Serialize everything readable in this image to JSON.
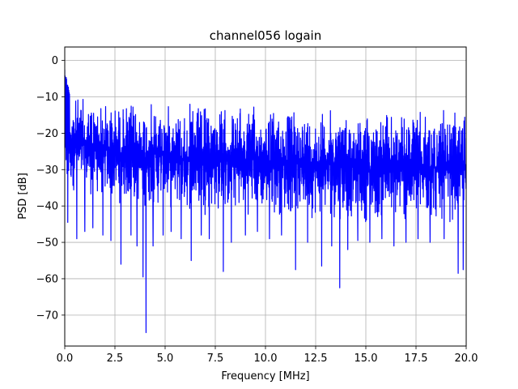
{
  "chart_data": {
    "type": "line",
    "title": "channel056 logain",
    "xlabel": "Frequency [MHz]",
    "ylabel": "PSD [dB]",
    "xlim": [
      0,
      20
    ],
    "ylim": [
      -78.5,
      3.7
    ],
    "x_ticks": [
      0.0,
      2.5,
      5.0,
      7.5,
      10.0,
      12.5,
      15.0,
      17.5,
      20.0
    ],
    "x_tick_labels": [
      "0.0",
      "2.5",
      "5.0",
      "7.5",
      "10.0",
      "12.5",
      "15.0",
      "17.5",
      "20.0"
    ],
    "y_ticks": [
      0,
      -10,
      -20,
      -30,
      -40,
      -50,
      -60,
      -70
    ],
    "y_tick_labels": [
      "0",
      "−10",
      "−20",
      "−30",
      "−40",
      "−50",
      "−60",
      "−70"
    ],
    "grid": true,
    "series": [
      {
        "color": "#0000ff",
        "profile": {
          "start_peak": [
            0.0,
            -2.5
          ],
          "upper_envelope": [
            [
              0,
              -8.5
            ],
            [
              2.5,
              -10.5
            ],
            [
              5,
              -11
            ],
            [
              7.5,
              -11.5
            ],
            [
              10,
              -12
            ],
            [
              12.5,
              -12.5
            ],
            [
              15,
              -13
            ],
            [
              17.5,
              -13.5
            ],
            [
              20,
              -13.5
            ]
          ],
          "lower_envelope": [
            [
              0,
              -36
            ],
            [
              2.5,
              -40
            ],
            [
              5,
              -42
            ],
            [
              7.5,
              -43
            ],
            [
              10,
              -43
            ],
            [
              12.5,
              -44
            ],
            [
              15,
              -45
            ],
            [
              17.5,
              -46
            ],
            [
              20,
              -45
            ]
          ],
          "dips": [
            [
              0.15,
              -44.5
            ],
            [
              0.6,
              -49
            ],
            [
              1.0,
              -47
            ],
            [
              1.4,
              -46
            ],
            [
              1.9,
              -48
            ],
            [
              2.3,
              -49.5
            ],
            [
              2.8,
              -56
            ],
            [
              3.3,
              -48
            ],
            [
              3.6,
              -51
            ],
            [
              3.9,
              -59.5
            ],
            [
              4.05,
              -74.8
            ],
            [
              4.4,
              -51
            ],
            [
              4.9,
              -48
            ],
            [
              5.3,
              -47
            ],
            [
              5.8,
              -49
            ],
            [
              6.3,
              -55
            ],
            [
              6.8,
              -48
            ],
            [
              7.2,
              -49
            ],
            [
              7.9,
              -58
            ],
            [
              8.3,
              -50
            ],
            [
              9.0,
              -48
            ],
            [
              9.6,
              -47
            ],
            [
              10.2,
              -49
            ],
            [
              10.8,
              -48
            ],
            [
              11.5,
              -57.5
            ],
            [
              12.1,
              -50
            ],
            [
              12.8,
              -56.5
            ],
            [
              13.3,
              -51
            ],
            [
              13.7,
              -62.5
            ],
            [
              14.1,
              -52
            ],
            [
              14.6,
              -49.5
            ],
            [
              15.2,
              -50
            ],
            [
              15.8,
              -49
            ],
            [
              16.4,
              -51
            ],
            [
              17.0,
              -50
            ],
            [
              17.6,
              -49
            ],
            [
              18.2,
              -50
            ],
            [
              18.9,
              -49
            ],
            [
              19.6,
              -58.5
            ],
            [
              19.85,
              -57.5
            ]
          ]
        }
      }
    ]
  }
}
